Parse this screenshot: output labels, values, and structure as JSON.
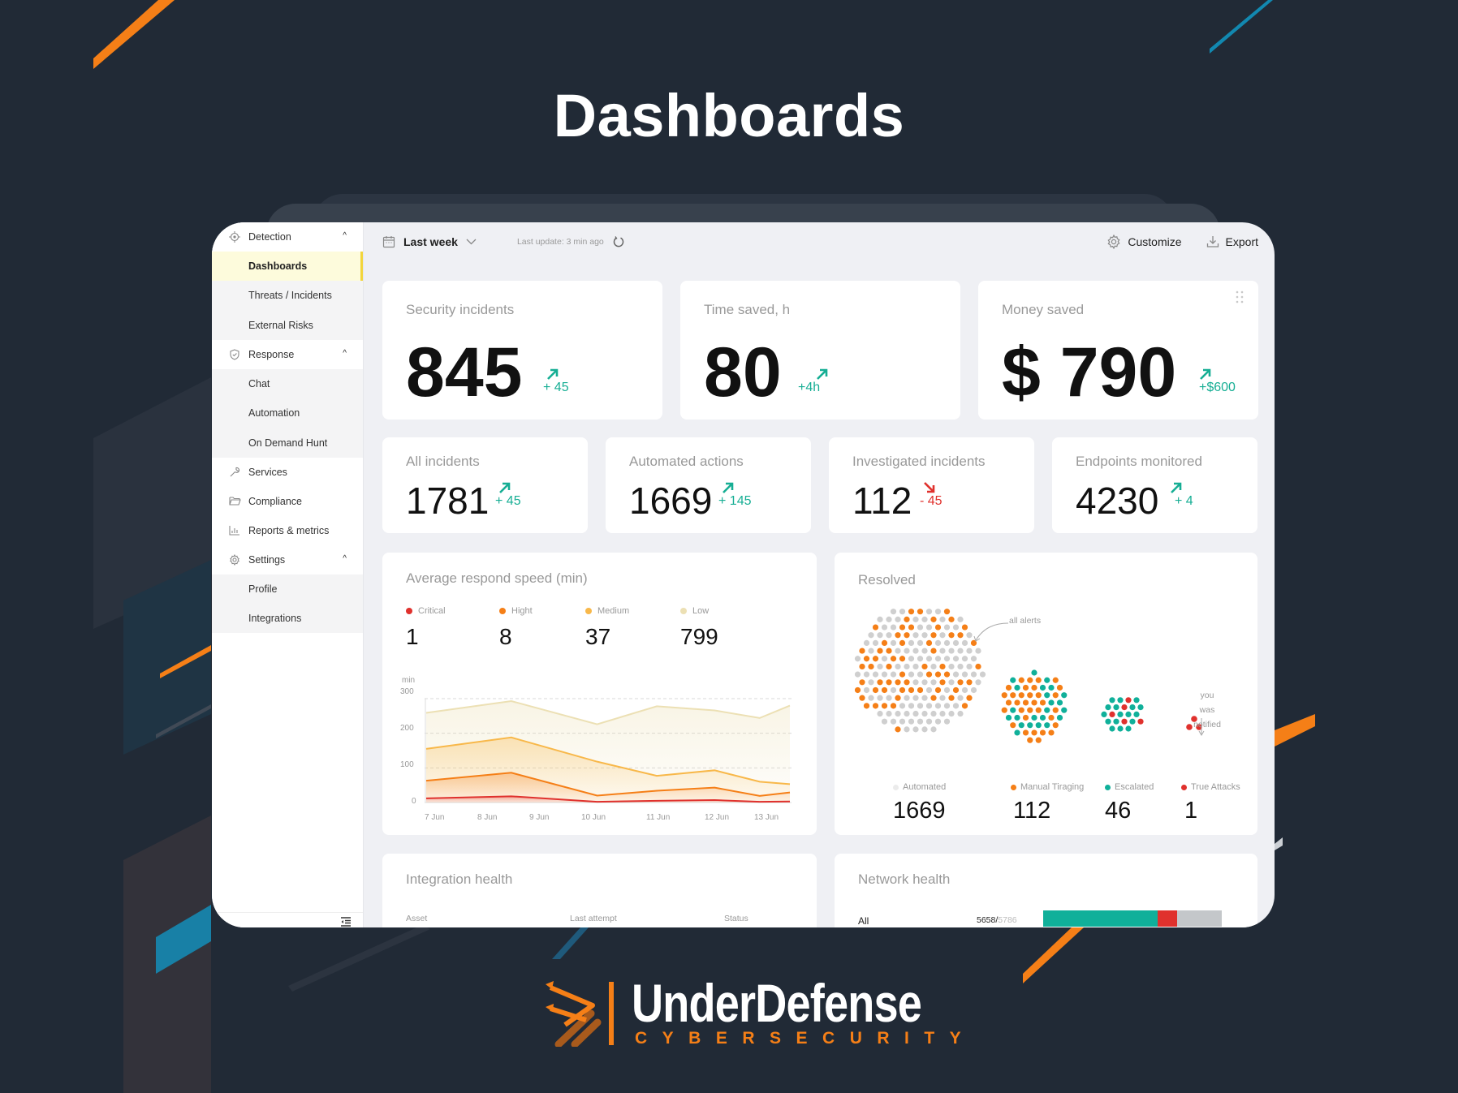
{
  "page": {
    "title": "Dashboards",
    "brand_name": "UnderDefense",
    "brand_tagline": "CYBERSECURITY"
  },
  "colors": {
    "background": "#212a36",
    "accent_orange": "#f57f17",
    "accent_blue": "#1288b0",
    "positive": "#16ae94",
    "negative": "#e0312d",
    "active_nav_bg": "#fdfbdc",
    "active_nav_border": "#f2d53c"
  },
  "sidebar": {
    "groups": [
      {
        "label": "Detection",
        "icon": "crosshair-icon",
        "expanded": true,
        "items": [
          {
            "label": "Dashboards",
            "active": true
          },
          {
            "label": "Threats / Incidents"
          },
          {
            "label": "External Risks"
          }
        ]
      },
      {
        "label": "Response",
        "icon": "shield-check-icon",
        "expanded": true,
        "items": [
          {
            "label": "Chat"
          },
          {
            "label": "Automation"
          },
          {
            "label": "On Demand Hunt"
          }
        ]
      },
      {
        "label": "Services",
        "icon": "wrench-icon"
      },
      {
        "label": "Compliance",
        "icon": "folder-icon"
      },
      {
        "label": "Reports & metrics",
        "icon": "bar-chart-icon"
      },
      {
        "label": "Settings",
        "icon": "gear-icon",
        "expanded": true,
        "items": [
          {
            "label": "Profile"
          },
          {
            "label": "Integrations"
          }
        ]
      }
    ]
  },
  "topbar": {
    "range_label": "Last week",
    "last_update": "Last update: 3 min ago",
    "customize_label": "Customize",
    "export_label": "Export"
  },
  "kpis_top": [
    {
      "title": "Security incidents",
      "value": "845",
      "delta": "+ 45",
      "trend": "up"
    },
    {
      "title": "Time saved, h",
      "value": "80",
      "delta": "+4h",
      "trend": "up"
    },
    {
      "title": "Money saved",
      "value": "$ 790",
      "delta": "+$600",
      "trend": "up"
    }
  ],
  "kpis_mid": [
    {
      "title": "All incidents",
      "value": "1781",
      "delta": "+ 45",
      "trend": "up"
    },
    {
      "title": "Automated actions",
      "value": "1669",
      "delta": "+ 145",
      "trend": "up"
    },
    {
      "title": "Investigated incidents",
      "value": "112",
      "delta": "- 45",
      "trend": "down"
    },
    {
      "title": "Endpoints monitored",
      "value": "4230",
      "delta": "+ 4",
      "trend": "up"
    }
  ],
  "respond_speed": {
    "title": "Average respond speed (min)",
    "legend": [
      {
        "label": "Critical",
        "value": "1",
        "color": "#e0312d"
      },
      {
        "label": "Hight",
        "value": "8",
        "color": "#f57f17"
      },
      {
        "label": "Medium",
        "value": "37",
        "color": "#f8b84a"
      },
      {
        "label": "Low",
        "value": "799",
        "color": "#ece0b4"
      }
    ],
    "y_unit": "min",
    "y_ticks": [
      "300",
      "200",
      "100",
      "0"
    ],
    "x_ticks": [
      "7 Jun",
      "8 Jun",
      "9 Jun",
      "10 Jun",
      "11 Jun",
      "12 Jun",
      "13 Jun"
    ]
  },
  "chart_data": {
    "type": "area",
    "title": "Average respond speed (min)",
    "xlabel": "",
    "ylabel": "min",
    "ylim": [
      0,
      300
    ],
    "grid": true,
    "legend_position": "top",
    "categories": [
      "7 Jun",
      "8 Jun",
      "9 Jun",
      "10 Jun",
      "11 Jun",
      "12 Jun",
      "13 Jun"
    ],
    "x_positions": [
      0,
      0.234,
      0.47,
      0.634,
      0.793,
      0.917,
      1.0
    ],
    "series": [
      {
        "name": "Low",
        "color": "#ece0b4",
        "values": [
          259,
          293,
          226,
          278,
          266,
          244,
          280
        ]
      },
      {
        "name": "Medium",
        "color": "#f8b84a",
        "values": [
          155,
          188,
          118,
          77,
          93,
          60,
          53
        ]
      },
      {
        "name": "Hight",
        "color": "#f57f17",
        "values": [
          63,
          86,
          20,
          34,
          43,
          19,
          29
        ]
      },
      {
        "name": "Critical",
        "color": "#e0312d",
        "values": [
          12,
          18,
          2,
          5,
          7,
          2,
          3
        ]
      }
    ]
  },
  "resolved": {
    "title": "Resolved",
    "annotation_all": "all alerts",
    "annotation_notified": "you was notified",
    "stats": [
      {
        "label": "Automated",
        "value": "1669",
        "color": "#e6e6e6"
      },
      {
        "label": "Manual Tiraging",
        "value": "112",
        "color": "#f57f17"
      },
      {
        "label": "Escalated",
        "value": "46",
        "color": "#10b09a"
      },
      {
        "label": "True Attacks",
        "value": "1",
        "color": "#e0312d"
      }
    ]
  },
  "integration_health": {
    "title": "Integration health",
    "columns": [
      "Asset",
      "Last attempt",
      "Status"
    ]
  },
  "network_health": {
    "title": "Network health",
    "rows": [
      {
        "label": "All",
        "healthy": "5658",
        "total": "5786",
        "segments": [
          {
            "pct": 64,
            "color": "#10b09a"
          },
          {
            "pct": 11,
            "color": "#e0312d"
          },
          {
            "pct": 25,
            "color": "#c4c7ca"
          }
        ]
      }
    ]
  }
}
